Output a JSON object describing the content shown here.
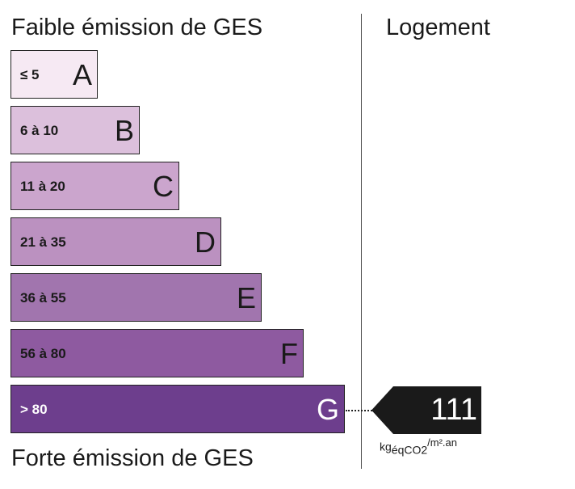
{
  "header": {
    "title": "Faible émission de GES",
    "column": "Logement"
  },
  "footer": {
    "title": "Forte émission de GES"
  },
  "bands": [
    {
      "range": "≤ 5",
      "letter": "A",
      "color": "#f6e9f3"
    },
    {
      "range": "6 à 10",
      "letter": "B",
      "color": "#dcc0dc"
    },
    {
      "range": "11 à 20",
      "letter": "C",
      "color": "#cba5cd"
    },
    {
      "range": "21 à 35",
      "letter": "D",
      "color": "#bb91c0"
    },
    {
      "range": "36 à 55",
      "letter": "E",
      "color": "#a175ae"
    },
    {
      "range": "56 à 80",
      "letter": "F",
      "color": "#8e5aa0"
    },
    {
      "range": "> 80",
      "letter": "G",
      "color": "#6d3e8d"
    }
  ],
  "indicator": {
    "value": "111",
    "unit": {
      "base": "kg",
      "sub": "éqCO2",
      "sup": "/m².an"
    }
  }
}
